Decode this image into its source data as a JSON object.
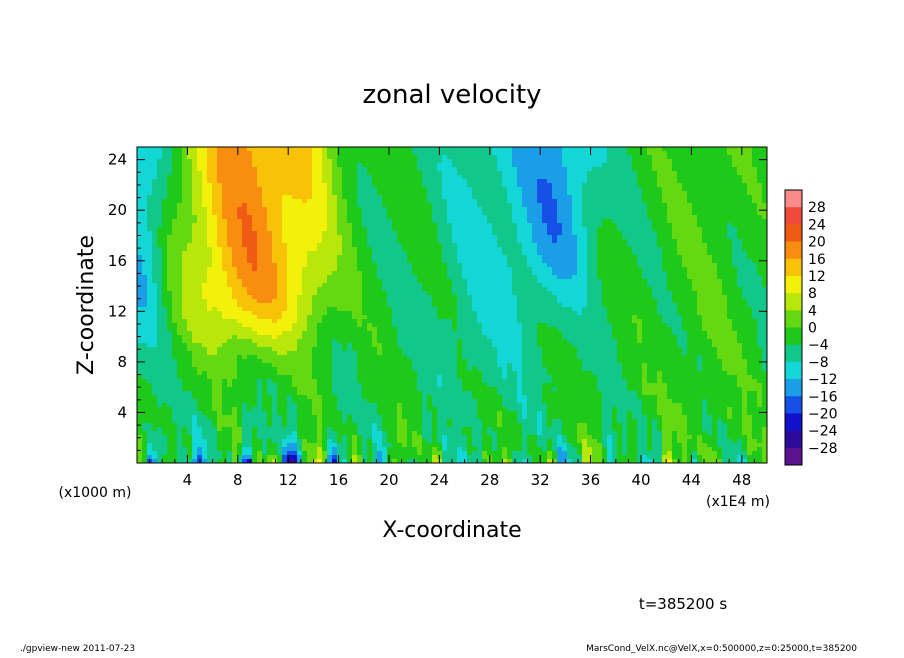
{
  "chart_data": {
    "type": "heatmap",
    "title": "zonal velocity",
    "xlabel": "X-coordinate",
    "ylabel": "Z-coordinate",
    "x_unit_label": "(x1E4 m)",
    "y_unit_label": "(x1000 m)",
    "xlim": [
      0,
      50
    ],
    "ylim": [
      0,
      25
    ],
    "x_ticks": [
      4,
      8,
      12,
      16,
      20,
      24,
      28,
      32,
      36,
      40,
      44,
      48
    ],
    "y_ticks": [
      4,
      8,
      12,
      16,
      20,
      24
    ],
    "colorbar": {
      "levels": [
        28,
        24,
        20,
        16,
        12,
        8,
        4,
        0,
        -4,
        -8,
        -12,
        -16,
        -20,
        -24,
        -28
      ],
      "range": [
        -30,
        30
      ],
      "colors": [
        "#fb8a8a",
        "#f04a3c",
        "#ef5a14",
        "#f98d0f",
        "#f7c207",
        "#f3f10a",
        "#b9e60b",
        "#64d811",
        "#1ec91a",
        "#11c88a",
        "#13d6d6",
        "#1a9ee7",
        "#1650e6",
        "#1111c9",
        "#2c0b9a",
        "#5a128e"
      ]
    },
    "time_label": "t=385200 s",
    "footer_left": "./gpview-new   2011-07-23",
    "footer_right": "MarsCond_VelX.nc@VelX,x=0:500000,z=0:25000,t=385200"
  }
}
